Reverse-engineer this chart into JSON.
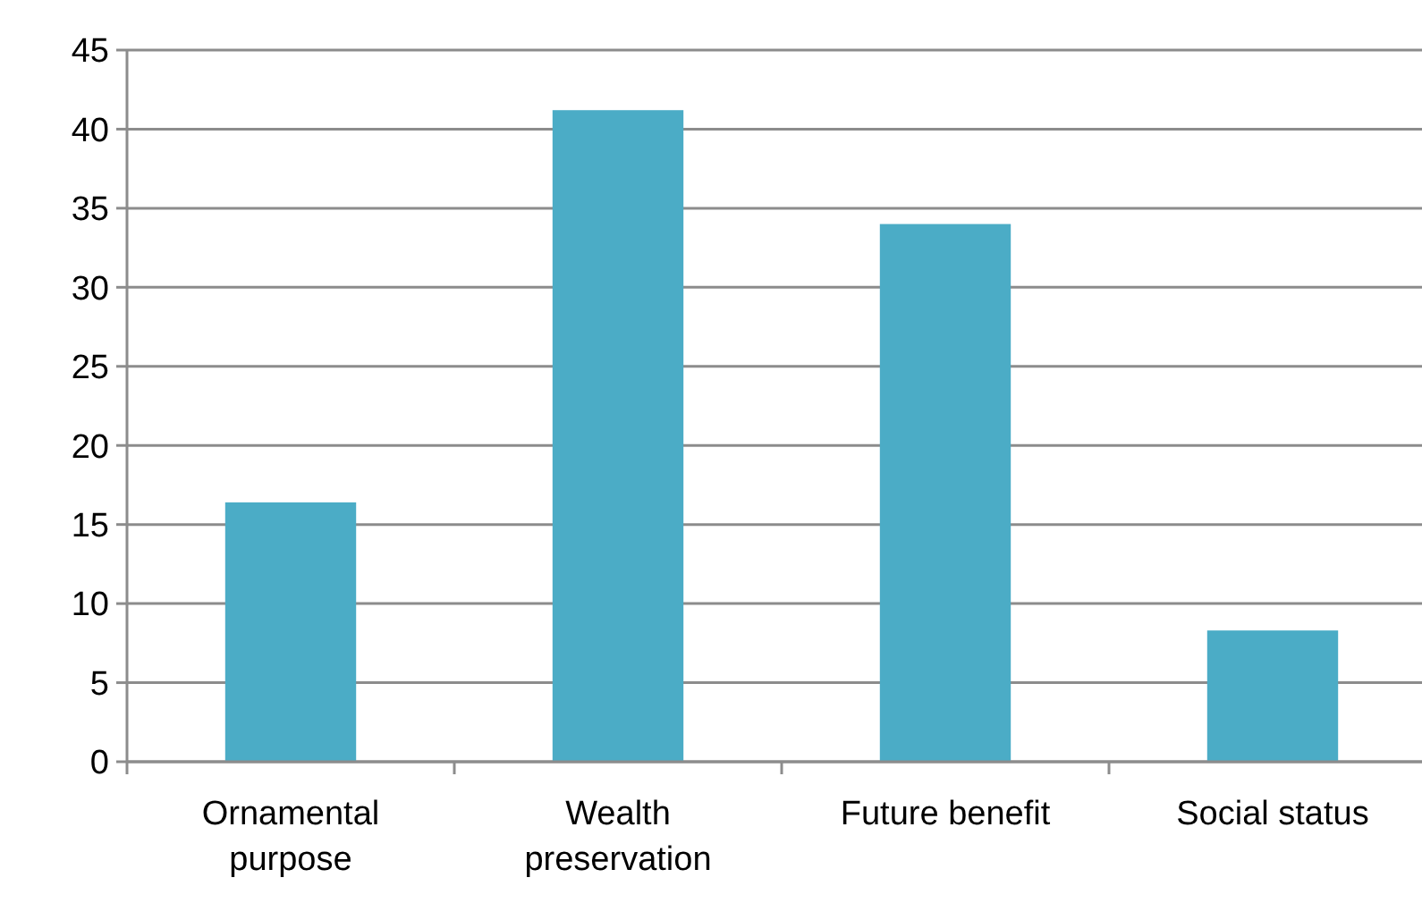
{
  "chart_data": {
    "type": "bar",
    "categories": [
      "Ornamental purpose",
      "Wealth preservation",
      "Future benefit",
      "Social status"
    ],
    "values": [
      16.4,
      41.2,
      34.0,
      8.3
    ],
    "color": "#4bacc6",
    "ylim": [
      0,
      45
    ],
    "yticks": [
      0,
      5,
      10,
      15,
      20,
      25,
      30,
      35,
      40,
      45
    ],
    "grid": "y"
  }
}
